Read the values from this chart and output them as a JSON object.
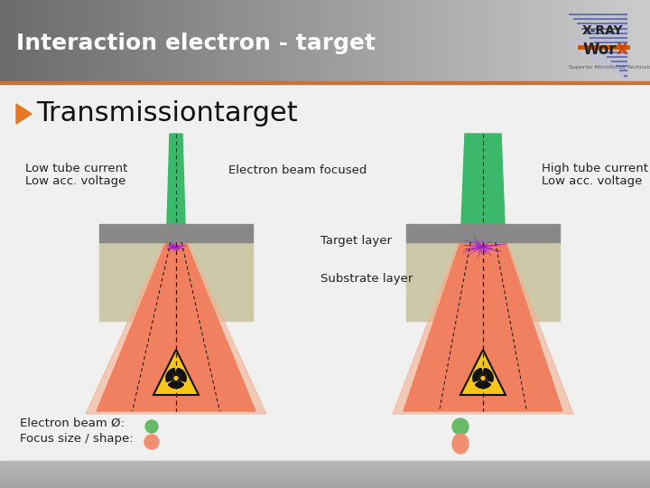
{
  "title": "Interaction electron - target",
  "subtitle": "Transmissiontarget",
  "orange_arrow_color": "#e87722",
  "title_fontsize": 18,
  "subtitle_fontsize": 22,
  "label_left_line1": "Low tube current",
  "label_left_line2": "Low acc. voltage",
  "label_center": "Electron beam focused",
  "label_target": "Target layer",
  "label_substrate": "Substrate layer",
  "label_right_line1": "High tube current",
  "label_right_line2": "Low acc. voltage",
  "label_beam": "Electron beam Ø:",
  "label_focus": "Focus size / shape:",
  "green_beam_color": "#3cb86a",
  "orange_cone_color": "#f08060",
  "orange_cone_light": "#f4b090",
  "gray_target_color": "#888888",
  "substrate_color": "#ccc8a8",
  "scatter_color": "#8822bb",
  "small_dot_color": "#66bb66",
  "large_dot_color": "#f09070",
  "header_left_dark": "#666666",
  "header_right_light": "#dddddd"
}
